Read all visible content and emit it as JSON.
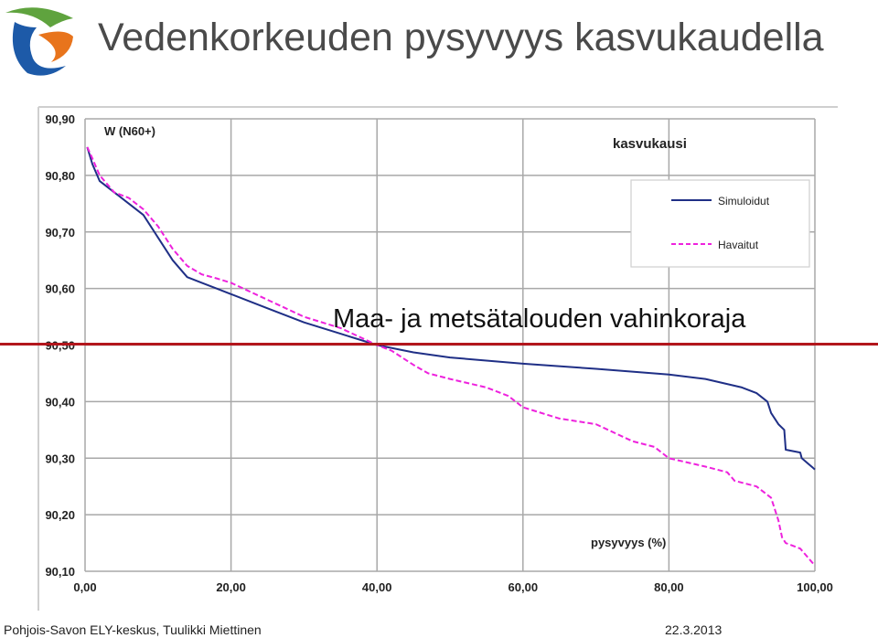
{
  "slide": {
    "title": "Vedenkorkeuden pysyvyys kasvukaudella",
    "footer_left": "Pohjois-Savon ELY-keskus, Tuulikki Miettinen",
    "footer_right": "22.3.2013"
  },
  "colors": {
    "simulated": "#1f2f86",
    "observed": "#ee22dd",
    "threshold": "#b2161c",
    "grid": "#a8a8a8",
    "logo_green": "#5fa33e",
    "logo_orange": "#e8741c",
    "logo_blue": "#1d5aa8"
  },
  "chart_data": {
    "type": "line",
    "title": "kasvukausi",
    "ylabel": "W (N60+)",
    "xlabel": "pysyvyys (%)",
    "xlim": [
      0,
      100
    ],
    "ylim": [
      90.1,
      90.9
    ],
    "x_ticks": [
      "0,00",
      "20,00",
      "40,00",
      "60,00",
      "80,00",
      "100,00"
    ],
    "y_ticks": [
      "90,90",
      "90,80",
      "90,70",
      "90,60",
      "90,50",
      "90,40",
      "90,30",
      "90,20",
      "90,10"
    ],
    "grid": true,
    "legend_position": "top-right",
    "series": [
      {
        "name": "Simuloidut",
        "style": "solid",
        "x": [
          0.3,
          1,
          2,
          4,
          6,
          8,
          10,
          12,
          14,
          16,
          18,
          20,
          25,
          30,
          35,
          40,
          45,
          50,
          60,
          70,
          80,
          85,
          90,
          92,
          93.5,
          94,
          95,
          95.8,
          96,
          98,
          98.2,
          100
        ],
        "values": [
          90.85,
          90.82,
          90.79,
          90.77,
          90.75,
          90.73,
          90.69,
          90.65,
          90.62,
          90.61,
          90.6,
          90.59,
          90.565,
          90.54,
          90.52,
          90.5,
          90.487,
          90.478,
          90.467,
          90.458,
          90.448,
          90.44,
          90.425,
          90.415,
          90.4,
          90.38,
          90.36,
          90.35,
          90.315,
          90.31,
          90.3,
          90.28
        ]
      },
      {
        "name": "Havaitut",
        "style": "dashed",
        "x": [
          0.3,
          1,
          2,
          4,
          6,
          8,
          10,
          12,
          14,
          16,
          18,
          20,
          25,
          30,
          35,
          40,
          42,
          45,
          47,
          50,
          55,
          58,
          60,
          65,
          70,
          75,
          78,
          80,
          85,
          88,
          89,
          92,
          94,
          95,
          95.5,
          96,
          98,
          100
        ],
        "values": [
          90.85,
          90.83,
          90.8,
          90.77,
          90.76,
          90.74,
          90.71,
          90.67,
          90.64,
          90.625,
          90.618,
          90.61,
          90.58,
          90.55,
          90.53,
          90.5,
          90.49,
          90.465,
          90.45,
          90.44,
          90.425,
          90.41,
          90.39,
          90.37,
          90.36,
          90.33,
          90.32,
          90.3,
          90.285,
          90.275,
          90.26,
          90.25,
          90.23,
          90.19,
          90.16,
          90.15,
          90.14,
          90.11
        ]
      }
    ],
    "threshold": {
      "label": "Maa- ja metsätalouden vahinkoraja",
      "value": 90.5
    }
  }
}
